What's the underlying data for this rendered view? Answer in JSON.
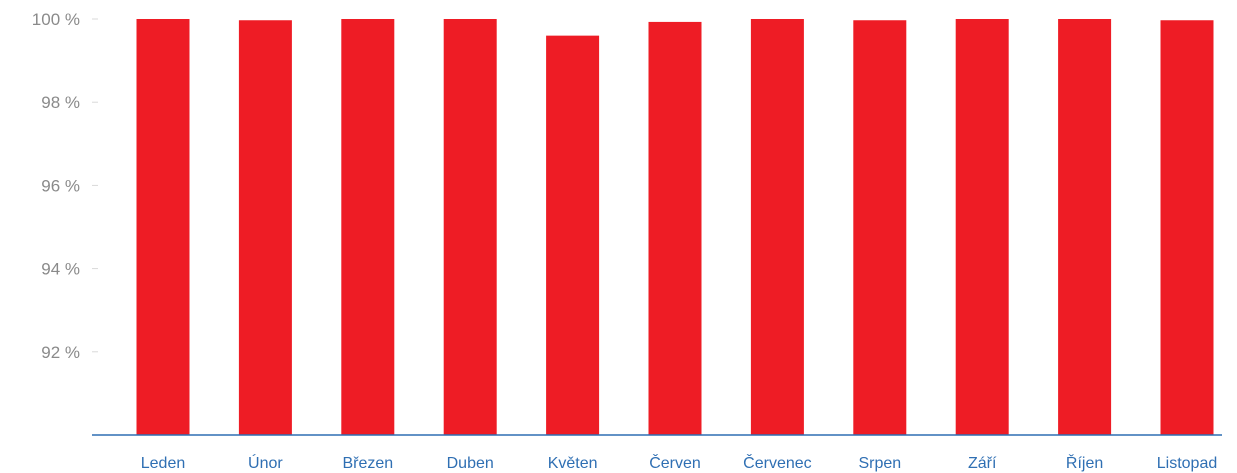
{
  "chart_data": {
    "type": "bar",
    "categories": [
      "Leden",
      "Únor",
      "Březen",
      "Duben",
      "Květen",
      "Červen",
      "Červenec",
      "Srpen",
      "Září",
      "Říjen",
      "Listopad"
    ],
    "values": [
      100.0,
      99.97,
      100.0,
      100.0,
      99.6,
      99.93,
      100.0,
      99.97,
      100.0,
      100.0,
      99.97
    ],
    "yticks": [
      92,
      94,
      96,
      98,
      100
    ],
    "ytick_labels": [
      "92 %",
      "94 %",
      "96 %",
      "98 %",
      "100 %"
    ],
    "ylim": [
      90.0,
      100.0
    ],
    "grid": false,
    "legend": "none",
    "title": "",
    "xlabel": "",
    "ylabel": "",
    "colors": {
      "bar": "#ee1c25",
      "axis": "#2f6fb3",
      "category_text": "#2f6fb3",
      "tick_text": "#8a8a8a",
      "tick_mark": "#d9d9d9"
    }
  }
}
